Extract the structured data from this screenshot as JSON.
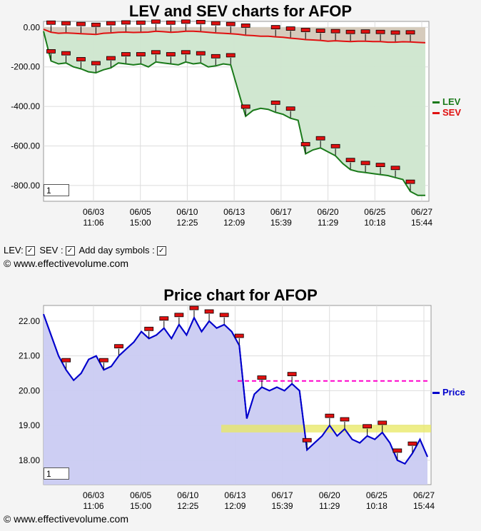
{
  "lev_chart": {
    "title": "LEV and SEV charts for AFOP",
    "zoom_value": "1",
    "legend": [
      {
        "name": "LEV",
        "color": "#1a7a1a"
      },
      {
        "name": "SEV",
        "color": "#e01010"
      }
    ]
  },
  "options": {
    "lev_label": "LEV:",
    "sev_label": "SEV :",
    "day_symbols_label": "Add day symbols :",
    "check": "✓"
  },
  "copyright_top": "© www.effectivevolume.com",
  "price_chart": {
    "title": "Price chart for AFOP",
    "zoom_value": "1",
    "legend": [
      {
        "name": "Price",
        "color": "#0000cc"
      }
    ]
  },
  "copyright_bottom": "© www.effectivevolume.com",
  "chart_data": [
    {
      "type": "area",
      "title": "LEV and SEV charts for AFOP",
      "ylim": [
        -880,
        30
      ],
      "yticks": [
        "0.00",
        "-200.00",
        "-400.00",
        "-600.00",
        "-800.00"
      ],
      "x_labels": [
        {
          "date": "06/03",
          "time": "11:06"
        },
        {
          "date": "06/05",
          "time": "15:00"
        },
        {
          "date": "06/10",
          "time": "12:25"
        },
        {
          "date": "06/13",
          "time": "12:09"
        },
        {
          "date": "06/17",
          "time": "15:39"
        },
        {
          "date": "06/20",
          "time": "11:29"
        },
        {
          "date": "06/25",
          "time": "10:18"
        },
        {
          "date": "06/27",
          "time": "15:44"
        }
      ],
      "grid": true,
      "legend_position": "right",
      "series": [
        {
          "name": "LEV",
          "color": "#1a7a1a",
          "fill": "#cde6cd",
          "values": [
            -20,
            -170,
            -185,
            -180,
            -200,
            -210,
            -225,
            -230,
            -215,
            -205,
            -180,
            -185,
            -190,
            -185,
            -200,
            -175,
            -180,
            -185,
            -190,
            -175,
            -185,
            -180,
            -200,
            -195,
            -185,
            -190,
            -320,
            -450,
            -420,
            -410,
            -415,
            -430,
            -440,
            -460,
            -470,
            -640,
            -620,
            -610,
            -630,
            -650,
            -690,
            -720,
            -730,
            -735,
            -740,
            -745,
            -750,
            -760,
            -770,
            -830,
            -850,
            -850
          ]
        },
        {
          "name": "SEV",
          "color": "#e01010",
          "fill": "#d6c8b9",
          "values": [
            -10,
            -25,
            -30,
            -28,
            -30,
            -32,
            -34,
            -36,
            -30,
            -28,
            -25,
            -24,
            -26,
            -25,
            -24,
            -20,
            -22,
            -25,
            -23,
            -20,
            -20,
            -22,
            -25,
            -28,
            -30,
            -32,
            -35,
            -40,
            -42,
            -45,
            -45,
            -48,
            -50,
            -55,
            -58,
            -62,
            -64,
            -66,
            -70,
            -68,
            -70,
            -72,
            -70,
            -70,
            -72,
            -72,
            -75,
            -75,
            -73,
            -74,
            -76,
            -78
          ]
        }
      ]
    },
    {
      "type": "area",
      "title": "Price chart for AFOP",
      "ylim": [
        17.3,
        22.45
      ],
      "yticks": [
        "22.00",
        "21.00",
        "20.00",
        "19.00",
        "18.00"
      ],
      "x_labels": [
        {
          "date": "06/03",
          "time": "11:06"
        },
        {
          "date": "06/05",
          "time": "15:00"
        },
        {
          "date": "06/10",
          "time": "12:25"
        },
        {
          "date": "06/13",
          "time": "12:09"
        },
        {
          "date": "06/17",
          "time": "15:39"
        },
        {
          "date": "06/20",
          "time": "11:29"
        },
        {
          "date": "06/25",
          "time": "10:18"
        },
        {
          "date": "06/27",
          "time": "15:44"
        }
      ],
      "grid": true,
      "legend_position": "right",
      "resistance_level": 20.28,
      "support_band": [
        18.8,
        19.02
      ],
      "series": [
        {
          "name": "Price",
          "color": "#0000cc",
          "fill": "#cacbf2",
          "values": [
            22.2,
            21.6,
            21.0,
            20.6,
            20.3,
            20.5,
            20.9,
            21.0,
            20.6,
            20.7,
            21.0,
            21.2,
            21.4,
            21.7,
            21.5,
            21.6,
            21.8,
            21.5,
            21.9,
            21.6,
            22.1,
            21.7,
            22.0,
            21.8,
            21.9,
            21.7,
            21.3,
            19.2,
            19.9,
            20.1,
            20.0,
            20.1,
            20.0,
            20.2,
            20.0,
            18.3,
            18.5,
            18.7,
            19.0,
            18.7,
            18.9,
            18.6,
            18.5,
            18.7,
            18.6,
            18.8,
            18.5,
            18.0,
            17.9,
            18.2,
            18.6,
            18.1
          ]
        }
      ]
    }
  ]
}
